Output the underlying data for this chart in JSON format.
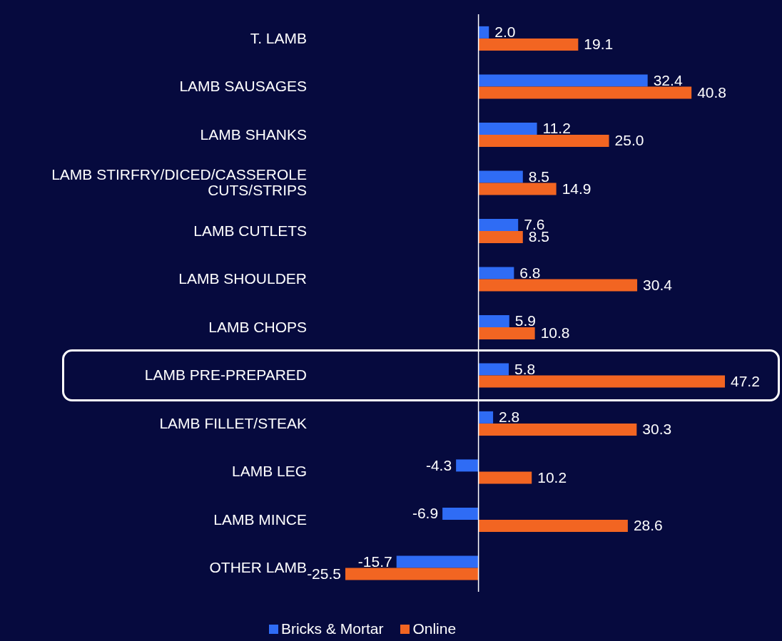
{
  "chart_data": {
    "type": "bar",
    "orientation": "horizontal",
    "categories": [
      "T. LAMB",
      "LAMB SAUSAGES",
      "LAMB SHANKS",
      "LAMB STIRFRY/DICED/CASSEROLE CUTS/STRIPS",
      "LAMB CUTLETS",
      "LAMB SHOULDER",
      "LAMB CHOPS",
      "LAMB PRE-PREPARED",
      "LAMB FILLET/STEAK",
      "LAMB LEG",
      "LAMB MINCE",
      "OTHER LAMB"
    ],
    "series": [
      {
        "name": "Bricks & Mortar",
        "color": "#2f6cf5",
        "values": [
          2.0,
          32.4,
          11.2,
          8.5,
          7.6,
          6.8,
          5.9,
          5.8,
          2.8,
          -4.3,
          -6.9,
          -15.7
        ],
        "value_labels": [
          "2.0",
          "32.4",
          "11.2",
          "8.5",
          "7.6",
          "6.8",
          "5.9",
          "5.8",
          "2.8",
          "-4.3",
          "-6.9",
          "-15.7"
        ]
      },
      {
        "name": "Online",
        "color": "#f26522",
        "values": [
          19.1,
          40.8,
          25.0,
          14.9,
          8.5,
          30.4,
          10.8,
          47.2,
          30.3,
          10.2,
          28.6,
          -25.5
        ],
        "value_labels": [
          "19.1",
          "40.8",
          "25.0",
          "14.9",
          "8.5",
          "30.4",
          "10.8",
          "47.2",
          "30.3",
          "10.2",
          "28.6",
          "-25.5"
        ]
      }
    ],
    "legend": "bottom"
  }
}
